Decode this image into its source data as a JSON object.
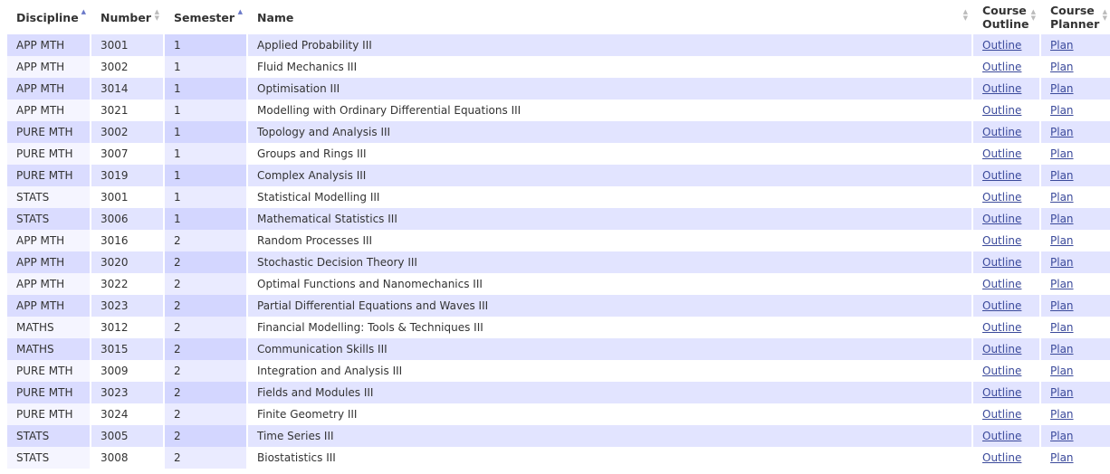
{
  "table": {
    "header": [
      "Discipline",
      "Number",
      "Semester",
      "Name",
      "Course Outline",
      "Course Planner"
    ],
    "rows": [
      [
        "APP MTH",
        "3001",
        "1",
        "Applied Probability III",
        "Outline",
        "Plan"
      ],
      [
        "APP MTH",
        "3002",
        "1",
        "Fluid Mechanics III",
        "Outline",
        "Plan"
      ],
      [
        "APP MTH",
        "3014",
        "1",
        "Optimisation III",
        "Outline",
        "Plan"
      ],
      [
        "APP MTH",
        "3021",
        "1",
        "Modelling with Ordinary Differential Equations III",
        "Outline",
        "Plan"
      ],
      [
        "PURE MTH",
        "3002",
        "1",
        "Topology and Analysis III",
        "Outline",
        "Plan"
      ],
      [
        "PURE MTH",
        "3007",
        "1",
        "Groups and Rings III",
        "Outline",
        "Plan"
      ],
      [
        "PURE MTH",
        "3019",
        "1",
        "Complex Analysis III",
        "Outline",
        "Plan"
      ],
      [
        "STATS",
        "3001",
        "1",
        "Statistical Modelling III",
        "Outline",
        "Plan"
      ],
      [
        "STATS",
        "3006",
        "1",
        "Mathematical Statistics III",
        "Outline",
        "Plan"
      ],
      [
        "APP MTH",
        "3016",
        "2",
        "Random Processes III",
        "Outline",
        "Plan"
      ],
      [
        "APP MTH",
        "3020",
        "2",
        "Stochastic Decision Theory III",
        "Outline",
        "Plan"
      ],
      [
        "APP MTH",
        "3022",
        "2",
        "Optimal Functions and Nanomechanics III",
        "Outline",
        "Plan"
      ],
      [
        "APP MTH",
        "3023",
        "2",
        "Partial Differential Equations and Waves III",
        "Outline",
        "Plan"
      ],
      [
        "MATHS",
        "3012",
        "2",
        "Financial Modelling: Tools & Techniques III",
        "Outline",
        "Plan"
      ],
      [
        "MATHS",
        "3015",
        "2",
        "Communication Skills III",
        "Outline",
        "Plan"
      ],
      [
        "PURE MTH",
        "3009",
        "2",
        "Integration and Analysis III",
        "Outline",
        "Plan"
      ],
      [
        "PURE MTH",
        "3023",
        "2",
        "Fields and Modules III",
        "Outline",
        "Plan"
      ],
      [
        "PURE MTH",
        "3024",
        "2",
        "Finite Geometry III",
        "Outline",
        "Plan"
      ],
      [
        "STATS",
        "3005",
        "2",
        "Time Series III",
        "Outline",
        "Plan"
      ],
      [
        "STATS",
        "3008",
        "2",
        "Biostatistics III",
        "Outline",
        "Plan"
      ]
    ]
  }
}
